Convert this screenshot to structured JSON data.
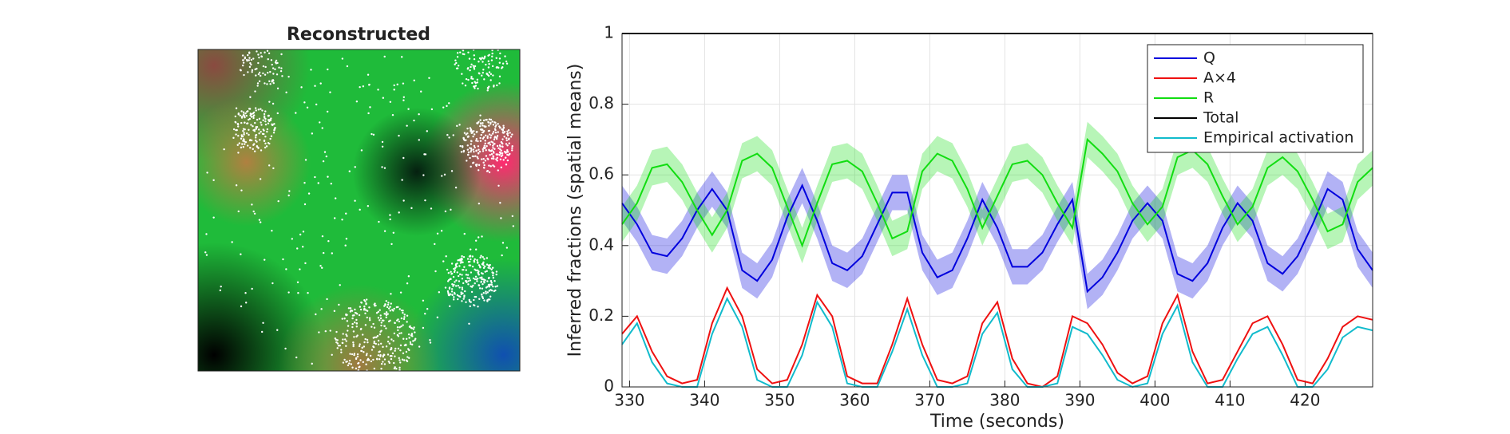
{
  "chart_data": [
    {
      "type": "image",
      "title": "Reconstructed"
    },
    {
      "type": "line",
      "xlabel": "Time (seconds)",
      "ylabel": "Inferred fractions (spatial means)",
      "xlim": [
        329,
        429
      ],
      "xticks": [
        330,
        340,
        350,
        360,
        370,
        380,
        390,
        400,
        410,
        420
      ],
      "ylim": [
        0,
        1
      ],
      "yticks": [
        0,
        0.2,
        0.4,
        0.6,
        0.8,
        1
      ],
      "grid": true,
      "legend": "northeast",
      "x": [
        329,
        331,
        333,
        335,
        337,
        339,
        341,
        343,
        345,
        347,
        349,
        351,
        353,
        355,
        357,
        359,
        361,
        363,
        365,
        367,
        369,
        371,
        373,
        375,
        377,
        379,
        381,
        383,
        385,
        387,
        389,
        391,
        393,
        395,
        397,
        399,
        401,
        403,
        405,
        407,
        409,
        411,
        413,
        415,
        417,
        419,
        421,
        423,
        425,
        427,
        429
      ],
      "series": [
        {
          "name": "Q",
          "color": "#0000dd",
          "error": 0.05,
          "values": [
            0.52,
            0.46,
            0.38,
            0.37,
            0.42,
            0.5,
            0.56,
            0.5,
            0.33,
            0.3,
            0.36,
            0.48,
            0.57,
            0.47,
            0.35,
            0.33,
            0.37,
            0.46,
            0.55,
            0.55,
            0.38,
            0.31,
            0.33,
            0.42,
            0.53,
            0.45,
            0.34,
            0.34,
            0.38,
            0.46,
            0.53,
            0.27,
            0.31,
            0.38,
            0.47,
            0.52,
            0.47,
            0.32,
            0.3,
            0.35,
            0.45,
            0.52,
            0.47,
            0.35,
            0.32,
            0.37,
            0.46,
            0.56,
            0.53,
            0.39,
            0.33
          ]
        },
        {
          "name": "A×4",
          "color": "#ee1111",
          "values": [
            0.15,
            0.2,
            0.1,
            0.03,
            0.01,
            0.02,
            0.18,
            0.28,
            0.2,
            0.05,
            0.01,
            0.02,
            0.12,
            0.26,
            0.2,
            0.03,
            0.01,
            0.01,
            0.12,
            0.25,
            0.12,
            0.02,
            0.01,
            0.03,
            0.18,
            0.24,
            0.08,
            0.01,
            0,
            0.03,
            0.2,
            0.18,
            0.12,
            0.04,
            0.01,
            0.03,
            0.18,
            0.26,
            0.1,
            0.01,
            0.02,
            0.1,
            0.18,
            0.2,
            0.12,
            0.02,
            0.01,
            0.08,
            0.17,
            0.2,
            0.19
          ]
        },
        {
          "name": "R",
          "color": "#11dd11",
          "error": 0.05,
          "values": [
            0.46,
            0.52,
            0.62,
            0.63,
            0.58,
            0.5,
            0.43,
            0.5,
            0.64,
            0.66,
            0.62,
            0.51,
            0.4,
            0.52,
            0.63,
            0.64,
            0.61,
            0.52,
            0.42,
            0.44,
            0.61,
            0.66,
            0.64,
            0.56,
            0.45,
            0.54,
            0.63,
            0.64,
            0.6,
            0.52,
            0.45,
            0.7,
            0.66,
            0.61,
            0.52,
            0.46,
            0.51,
            0.65,
            0.67,
            0.63,
            0.54,
            0.46,
            0.51,
            0.62,
            0.65,
            0.61,
            0.53,
            0.44,
            0.46,
            0.58,
            0.62
          ]
        },
        {
          "name": "Total",
          "color": "#000000",
          "values": [
            1,
            1,
            1,
            1,
            1,
            1,
            1,
            1,
            1,
            1,
            1,
            1,
            1,
            1,
            1,
            1,
            1,
            1,
            1,
            1,
            1,
            1,
            1,
            1,
            1,
            1,
            1,
            1,
            1,
            1,
            1,
            1,
            1,
            1,
            1,
            1,
            1,
            1,
            1,
            1,
            1,
            1,
            1,
            1,
            1,
            1,
            1,
            1,
            1,
            1,
            1
          ]
        },
        {
          "name": "Empirical activation",
          "color": "#11bbcc",
          "values": [
            0.12,
            0.18,
            0.07,
            0.01,
            0,
            0,
            0.15,
            0.25,
            0.17,
            0.02,
            0,
            0,
            0.09,
            0.24,
            0.17,
            0.01,
            0,
            0,
            0.1,
            0.22,
            0.09,
            0,
            0,
            0.01,
            0.15,
            0.21,
            0.05,
            0,
            0,
            0.01,
            0.17,
            0.15,
            0.09,
            0.02,
            0,
            0.01,
            0.15,
            0.23,
            0.07,
            0,
            0,
            0.08,
            0.15,
            0.17,
            0.09,
            0,
            0,
            0.05,
            0.14,
            0.17,
            0.16
          ]
        }
      ]
    }
  ]
}
